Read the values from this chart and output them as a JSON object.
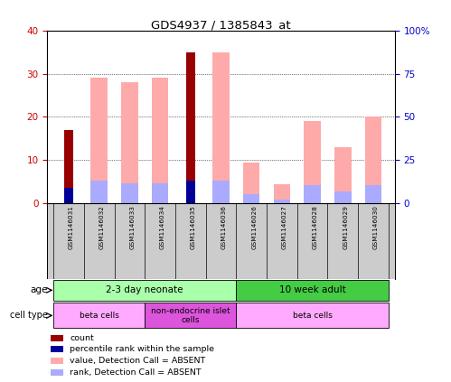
{
  "title": "GDS4937 / 1385843_at",
  "samples": [
    "GSM1146031",
    "GSM1146032",
    "GSM1146033",
    "GSM1146034",
    "GSM1146035",
    "GSM1146036",
    "GSM1146026",
    "GSM1146027",
    "GSM1146028",
    "GSM1146029",
    "GSM1146030"
  ],
  "count_values": [
    17,
    0,
    0,
    0,
    35,
    0,
    0,
    0,
    0,
    0,
    0
  ],
  "rank_values": [
    9,
    0,
    0,
    0,
    13,
    0,
    0,
    0,
    0,
    0,
    0
  ],
  "absent_value_values": [
    0,
    29,
    28,
    29,
    0,
    35,
    9.5,
    4.5,
    19,
    13,
    20
  ],
  "absent_rank_values": [
    0,
    13,
    11.5,
    11.5,
    0,
    13,
    5.5,
    2,
    10.5,
    7,
    10.5
  ],
  "left_ylim": [
    0,
    40
  ],
  "right_ylim": [
    0,
    100
  ],
  "left_yticks": [
    0,
    10,
    20,
    30,
    40
  ],
  "left_yticklabels": [
    "0",
    "10",
    "20",
    "30",
    "40"
  ],
  "right_yticks": [
    0,
    25,
    50,
    75,
    100
  ],
  "right_yticklabels": [
    "0",
    "25",
    "50",
    "75",
    "100%"
  ],
  "color_count": "#990000",
  "color_rank": "#000099",
  "color_absent_value": "#ffaaaa",
  "color_absent_rank": "#aaaaff",
  "age_groups": [
    {
      "label": "2-3 day neonate",
      "start": 0,
      "end": 6,
      "color": "#aaffaa"
    },
    {
      "label": "10 week adult",
      "start": 6,
      "end": 11,
      "color": "#44cc44"
    }
  ],
  "cell_groups": [
    {
      "label": "beta cells",
      "start": 0,
      "end": 3,
      "color": "#ffaaff"
    },
    {
      "label": "non-endocrine islet\ncells",
      "start": 3,
      "end": 6,
      "color": "#dd55dd"
    },
    {
      "label": "beta cells",
      "start": 6,
      "end": 11,
      "color": "#ffaaff"
    }
  ],
  "bar_width": 0.55,
  "bg_color": "#ffffff",
  "legend_items": [
    {
      "color": "#990000",
      "label": "count"
    },
    {
      "color": "#000099",
      "label": "percentile rank within the sample"
    },
    {
      "color": "#ffaaaa",
      "label": "value, Detection Call = ABSENT"
    },
    {
      "color": "#aaaaff",
      "label": "rank, Detection Call = ABSENT"
    }
  ]
}
